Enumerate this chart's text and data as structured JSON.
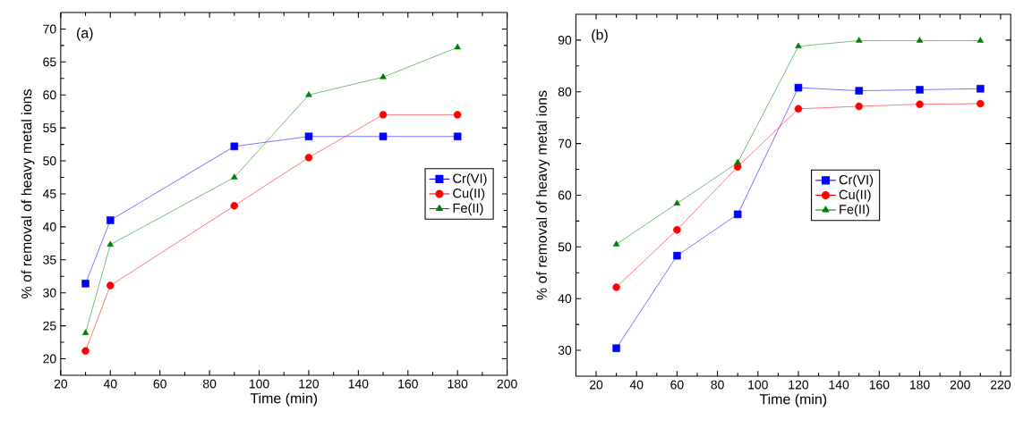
{
  "chart_data": [
    {
      "type": "line",
      "xlabel": "Time (min)",
      "ylabel": "% of removal of heavy metal ions",
      "annotations": [
        "(a)"
      ],
      "x": [
        30,
        40,
        90,
        120,
        150,
        180
      ],
      "xlim": [
        20,
        200
      ],
      "xticks": [
        20,
        40,
        60,
        80,
        100,
        120,
        140,
        160,
        180,
        200
      ],
      "ylim": [
        17.5,
        72.5
      ],
      "yticks": [
        20,
        25,
        30,
        35,
        40,
        45,
        50,
        55,
        60,
        65,
        70
      ],
      "grid": false,
      "legend": "right",
      "series": [
        {
          "name": "Cr(VI)",
          "color": "#0000ff",
          "marker": "square",
          "values": [
            31.4,
            41,
            52.2,
            53.7,
            53.7,
            53.7
          ]
        },
        {
          "name": "Cu(II)",
          "color": "#ff0000",
          "marker": "circle",
          "values": [
            21.2,
            31.1,
            43.2,
            50.5,
            57,
            57
          ]
        },
        {
          "name": "Fe(II)",
          "color": "#008000",
          "marker": "triangle",
          "values": [
            23.9,
            37.3,
            47.5,
            60,
            62.7,
            67.2
          ]
        }
      ]
    },
    {
      "type": "line",
      "xlabel": "Time (min)",
      "ylabel": "% of removal of heavy metal ions",
      "annotations": [
        "(b)"
      ],
      "x": [
        30,
        60,
        90,
        120,
        150,
        180,
        210
      ],
      "xlim": [
        10,
        225
      ],
      "xticks": [
        20,
        40,
        60,
        80,
        100,
        120,
        140,
        160,
        180,
        200,
        220
      ],
      "ylim": [
        25,
        95
      ],
      "yticks": [
        30,
        40,
        50,
        60,
        70,
        80,
        90
      ],
      "grid": false,
      "legend": "center",
      "series": [
        {
          "name": "Cr(VI)",
          "color": "#0000ff",
          "marker": "square",
          "values": [
            30.4,
            48.3,
            56.3,
            80.8,
            80.2,
            80.4,
            80.6
          ]
        },
        {
          "name": "Cu(II)",
          "color": "#ff0000",
          "marker": "circle",
          "values": [
            42.2,
            53.3,
            65.5,
            76.7,
            77.2,
            77.6,
            77.7
          ]
        },
        {
          "name": "Fe(II)",
          "color": "#008000",
          "marker": "triangle",
          "values": [
            50.5,
            58.4,
            66.3,
            88.8,
            89.9,
            89.9,
            89.9
          ]
        }
      ]
    }
  ]
}
